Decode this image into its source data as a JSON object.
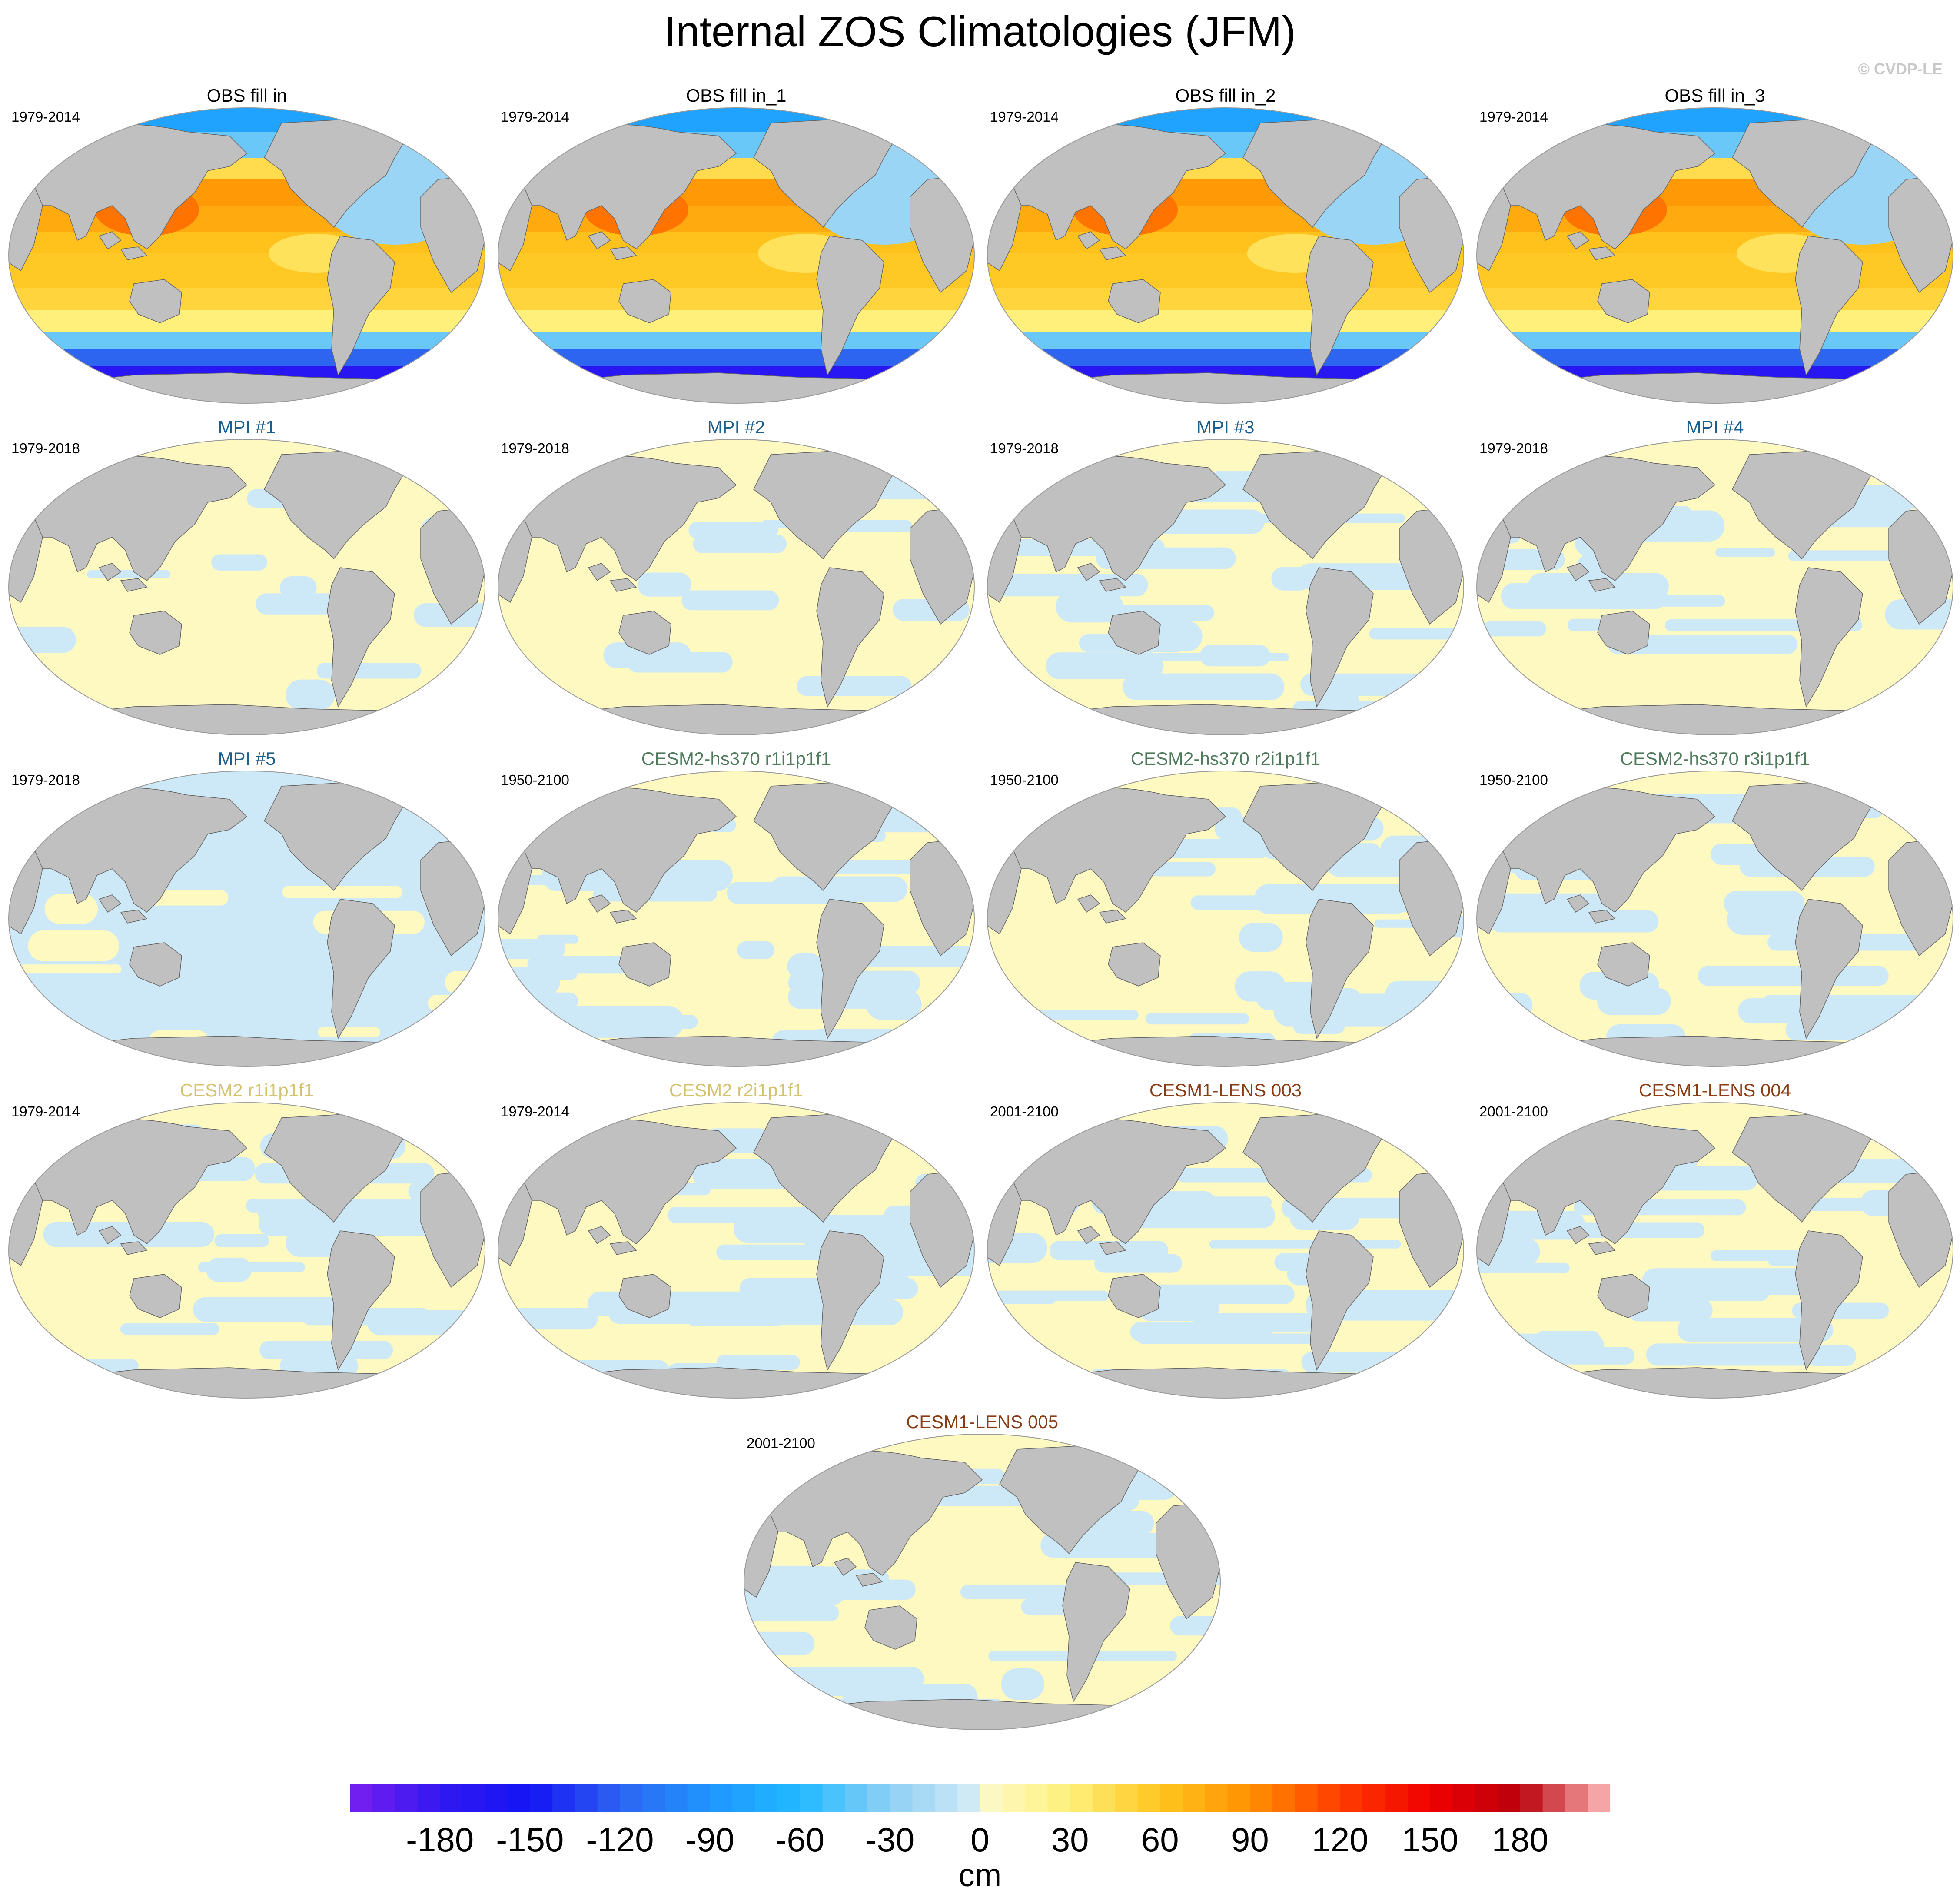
{
  "figure": {
    "title": "Internal ZOS Climatologies (JFM)",
    "credit": "© CVDP-LE"
  },
  "colors": {
    "land": "#c0c0c0",
    "coast": "#666666",
    "pale_yellow": "#fef9c1",
    "pale_blue": "#cde8f7",
    "title_black": "#000000",
    "title_mpi": "#1d5f8c",
    "title_cesm2hs": "#4f7b5c",
    "title_cesm2": "#d5c26f",
    "title_cesm1": "#8a3d14"
  },
  "panels": [
    {
      "title": "OBS fill in",
      "period": "1979-2014",
      "style": "obs",
      "title_color": "title_black"
    },
    {
      "title": "OBS fill in_1",
      "period": "1979-2014",
      "style": "obs",
      "title_color": "title_black"
    },
    {
      "title": "OBS fill in_2",
      "period": "1979-2014",
      "style": "obs",
      "title_color": "title_black"
    },
    {
      "title": "OBS fill in_3",
      "period": "1979-2014",
      "style": "obs",
      "title_color": "title_black"
    },
    {
      "title": "MPI #1",
      "period": "1979-2018",
      "style": "yellow",
      "title_color": "title_mpi"
    },
    {
      "title": "MPI #2",
      "period": "1979-2018",
      "style": "yellow",
      "title_color": "title_mpi"
    },
    {
      "title": "MPI #3",
      "period": "1979-2018",
      "style": "mixed",
      "title_color": "title_mpi"
    },
    {
      "title": "MPI #4",
      "period": "1979-2018",
      "style": "mixed",
      "title_color": "title_mpi"
    },
    {
      "title": "MPI #5",
      "period": "1979-2018",
      "style": "blue",
      "title_color": "title_mpi"
    },
    {
      "title": "CESM2-hs370 r1i1p1f1",
      "period": "1950-2100",
      "style": "mixed",
      "title_color": "title_cesm2hs"
    },
    {
      "title": "CESM2-hs370 r2i1p1f1",
      "period": "1950-2100",
      "style": "mixed",
      "title_color": "title_cesm2hs"
    },
    {
      "title": "CESM2-hs370 r3i1p1f1",
      "period": "1950-2100",
      "style": "mixed",
      "title_color": "title_cesm2hs"
    },
    {
      "title": "CESM2 r1i1p1f1",
      "period": "1979-2014",
      "style": "mixed",
      "title_color": "title_cesm2"
    },
    {
      "title": "CESM2 r2i1p1f1",
      "period": "1979-2014",
      "style": "mixed",
      "title_color": "title_cesm2"
    },
    {
      "title": "CESM1-LENS 003",
      "period": "2001-2100",
      "style": "mixed",
      "title_color": "title_cesm1"
    },
    {
      "title": "CESM1-LENS 004",
      "period": "2001-2100",
      "style": "mixed",
      "title_color": "title_cesm1"
    },
    {
      "title": "CESM1-LENS 005",
      "period": "2001-2100",
      "style": "mixed",
      "title_color": "title_cesm1"
    }
  ],
  "colorbar": {
    "unit": "cm",
    "ticks": [
      "-180",
      "-150",
      "-120",
      "-90",
      "-60",
      "-30",
      "0",
      "30",
      "60",
      "90",
      "120",
      "150",
      "180"
    ],
    "tick_values": [
      -180,
      -150,
      -120,
      -90,
      -60,
      -30,
      0,
      30,
      60,
      90,
      120,
      150,
      180
    ],
    "range": [
      -210,
      210
    ],
    "bins": 56,
    "stops": [
      {
        "value": -210,
        "color": "#7a1ff0"
      },
      {
        "value": -180,
        "color": "#3218f0"
      },
      {
        "value": -150,
        "color": "#1414f5"
      },
      {
        "value": -120,
        "color": "#2d64f0"
      },
      {
        "value": -90,
        "color": "#1f96ff"
      },
      {
        "value": -60,
        "color": "#21b9ff"
      },
      {
        "value": -30,
        "color": "#8ed0f4"
      },
      {
        "value": -4,
        "color": "#cde8f7"
      },
      {
        "value": 4,
        "color": "#fef9c1"
      },
      {
        "value": 30,
        "color": "#fef07a"
      },
      {
        "value": 60,
        "color": "#ffc61f"
      },
      {
        "value": 90,
        "color": "#ff9000"
      },
      {
        "value": 120,
        "color": "#ff3c00"
      },
      {
        "value": 150,
        "color": "#f00000"
      },
      {
        "value": 180,
        "color": "#b9000c"
      },
      {
        "value": 210,
        "color": "#ffbcbc"
      }
    ]
  }
}
